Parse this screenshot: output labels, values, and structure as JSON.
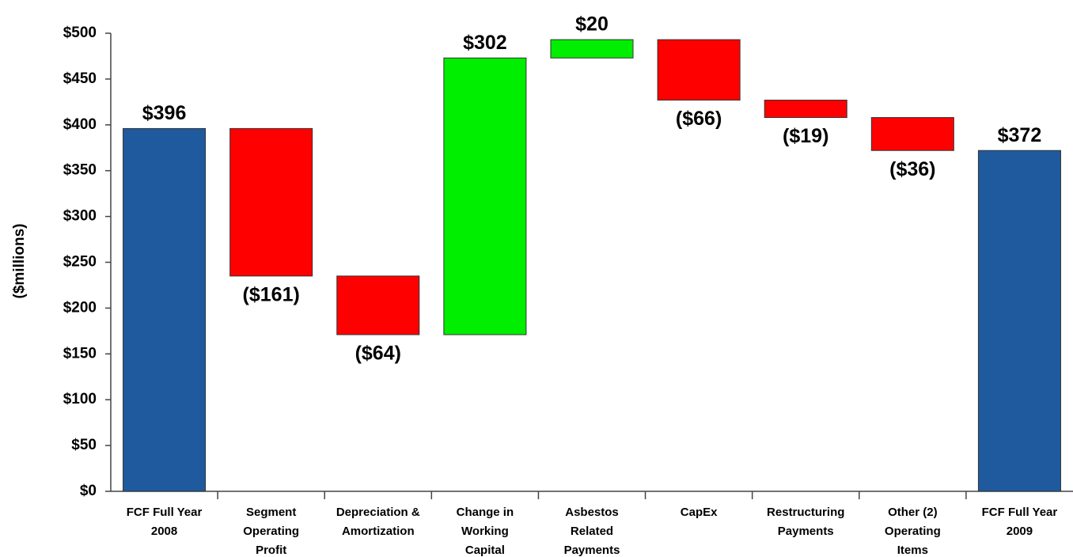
{
  "chart_data": {
    "type": "waterfall",
    "y_label": "($millions)",
    "categories": [
      [
        "FCF Full Year",
        "2008"
      ],
      [
        "Segment",
        "Operating",
        "Profit"
      ],
      [
        "Depreciation &",
        "Amortization"
      ],
      [
        "Change in",
        "Working",
        "Capital"
      ],
      [
        "Asbestos",
        "Related",
        "Payments"
      ],
      [
        "CapEx"
      ],
      [
        "Restructuring",
        "Payments"
      ],
      [
        "Other (2)",
        "Operating",
        "Items"
      ],
      [
        "FCF Full Year",
        "2009"
      ]
    ],
    "values": [
      396,
      -161,
      -64,
      302,
      20,
      -66,
      -19,
      -36,
      372
    ],
    "value_labels": [
      "$396",
      "($161)",
      "($64)",
      "$302",
      "$20",
      "($66)",
      "($19)",
      "($36)",
      "$372"
    ],
    "is_total": [
      true,
      false,
      false,
      false,
      false,
      false,
      false,
      false,
      true
    ],
    "colors": {
      "total": "#1f5a9e",
      "increase": "#00ee00",
      "decrease": "#ff0000"
    },
    "ylim": [
      0,
      500
    ],
    "yticks": [
      {
        "value": 0,
        "label": "$0"
      },
      {
        "value": 50,
        "label": "$50"
      },
      {
        "value": 100,
        "label": "$100"
      },
      {
        "value": 150,
        "label": "$150"
      },
      {
        "value": 200,
        "label": "$200"
      },
      {
        "value": 250,
        "label": "$250"
      },
      {
        "value": 300,
        "label": "$300"
      },
      {
        "value": 350,
        "label": "$350"
      },
      {
        "value": 400,
        "label": "$400"
      },
      {
        "value": 450,
        "label": "$450"
      },
      {
        "value": 500,
        "label": "$500"
      }
    ],
    "grid": false
  }
}
